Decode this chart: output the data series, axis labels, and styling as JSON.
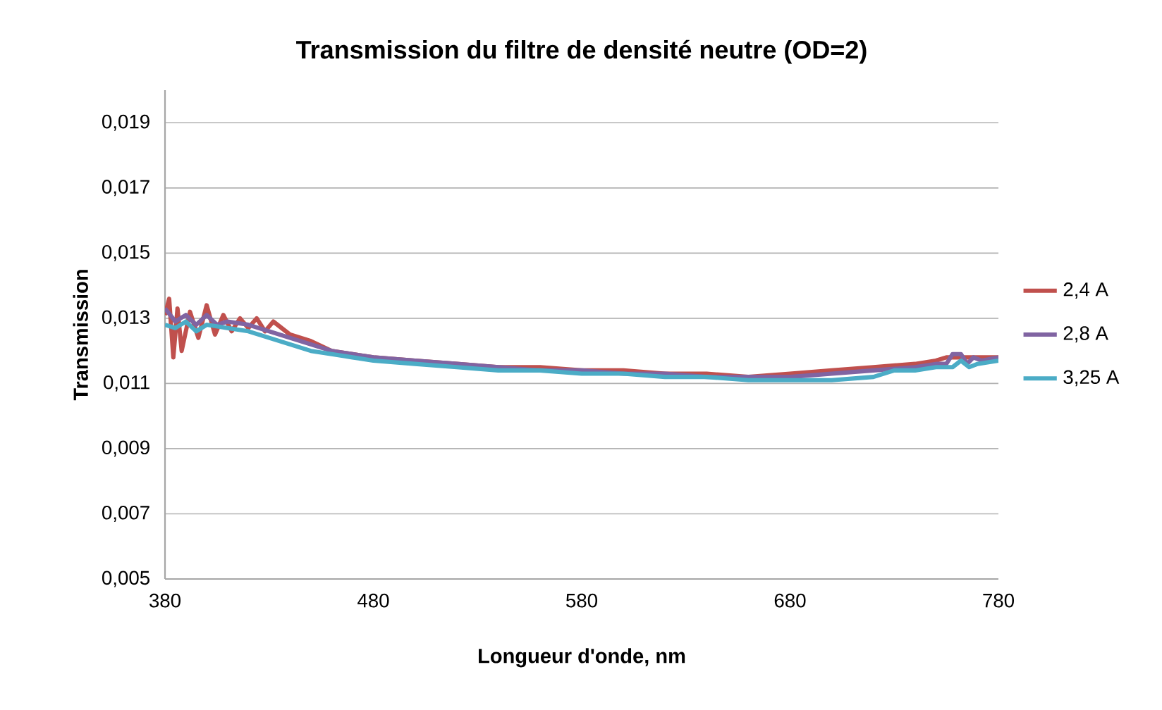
{
  "chart_data": {
    "type": "line",
    "title": "Transmission du filtre de densité neutre (OD=2)",
    "xlabel": "Longueur d'onde, nm",
    "ylabel": "Transmission",
    "xlim": [
      380,
      780
    ],
    "xticks": [
      380,
      480,
      580,
      680,
      780
    ],
    "ylim": [
      0.005,
      0.02
    ],
    "yticks": [
      {
        "value": 0.005,
        "label": "0,005"
      },
      {
        "value": 0.007,
        "label": "0,007"
      },
      {
        "value": 0.009,
        "label": "0,009"
      },
      {
        "value": 0.011,
        "label": "0,011"
      },
      {
        "value": 0.013,
        "label": "0,013"
      },
      {
        "value": 0.015,
        "label": "0,015"
      },
      {
        "value": 0.017,
        "label": "0,017"
      },
      {
        "value": 0.019,
        "label": "0,019"
      }
    ],
    "grid": "y",
    "legend": "right",
    "marker": "none",
    "line_style": "solid",
    "series": [
      {
        "name": "2,4 A",
        "color": "#c0504d",
        "x": [
          380,
          382,
          384,
          386,
          388,
          392,
          396,
          400,
          404,
          408,
          412,
          416,
          420,
          424,
          428,
          432,
          440,
          450,
          460,
          470,
          480,
          500,
          520,
          540,
          560,
          580,
          600,
          620,
          640,
          660,
          680,
          700,
          720,
          740,
          750,
          755,
          760,
          765,
          770,
          780
        ],
        "values": [
          0.0131,
          0.0136,
          0.0118,
          0.0133,
          0.012,
          0.0132,
          0.0124,
          0.0134,
          0.0125,
          0.0131,
          0.0126,
          0.013,
          0.0127,
          0.013,
          0.0126,
          0.0129,
          0.0125,
          0.0123,
          0.012,
          0.0119,
          0.0118,
          0.0117,
          0.0116,
          0.0115,
          0.0115,
          0.0114,
          0.0114,
          0.0113,
          0.0113,
          0.0112,
          0.0113,
          0.0114,
          0.0115,
          0.0116,
          0.0117,
          0.0118,
          0.0118,
          0.0118,
          0.0118,
          0.0118
        ]
      },
      {
        "name": "2,8 A",
        "color": "#8064a2",
        "x": [
          380,
          385,
          390,
          395,
          400,
          405,
          410,
          420,
          430,
          440,
          450,
          460,
          470,
          480,
          500,
          520,
          540,
          560,
          580,
          600,
          620,
          640,
          660,
          680,
          700,
          720,
          740,
          750,
          755,
          758,
          762,
          765,
          768,
          772,
          780
        ],
        "values": [
          0.0133,
          0.0129,
          0.0131,
          0.0128,
          0.0131,
          0.0128,
          0.0129,
          0.0128,
          0.0126,
          0.0124,
          0.0122,
          0.012,
          0.0119,
          0.0118,
          0.0117,
          0.0116,
          0.0115,
          0.0114,
          0.0114,
          0.0113,
          0.0113,
          0.0112,
          0.0112,
          0.0112,
          0.0113,
          0.0114,
          0.0115,
          0.0116,
          0.0116,
          0.0119,
          0.0119,
          0.0116,
          0.0118,
          0.0117,
          0.0118
        ]
      },
      {
        "name": "3,25 A",
        "color": "#4bacc6",
        "x": [
          380,
          385,
          390,
          395,
          400,
          410,
          420,
          430,
          440,
          450,
          460,
          470,
          480,
          500,
          520,
          540,
          560,
          580,
          600,
          620,
          640,
          660,
          680,
          700,
          720,
          730,
          740,
          750,
          758,
          762,
          766,
          770,
          780
        ],
        "values": [
          0.0128,
          0.0127,
          0.0129,
          0.0126,
          0.0128,
          0.0127,
          0.0126,
          0.0124,
          0.0122,
          0.012,
          0.0119,
          0.0118,
          0.0117,
          0.0116,
          0.0115,
          0.0114,
          0.0114,
          0.0113,
          0.0113,
          0.0112,
          0.0112,
          0.0111,
          0.0111,
          0.0111,
          0.0112,
          0.0114,
          0.0114,
          0.0115,
          0.0115,
          0.0117,
          0.0115,
          0.0116,
          0.0117
        ]
      }
    ]
  }
}
